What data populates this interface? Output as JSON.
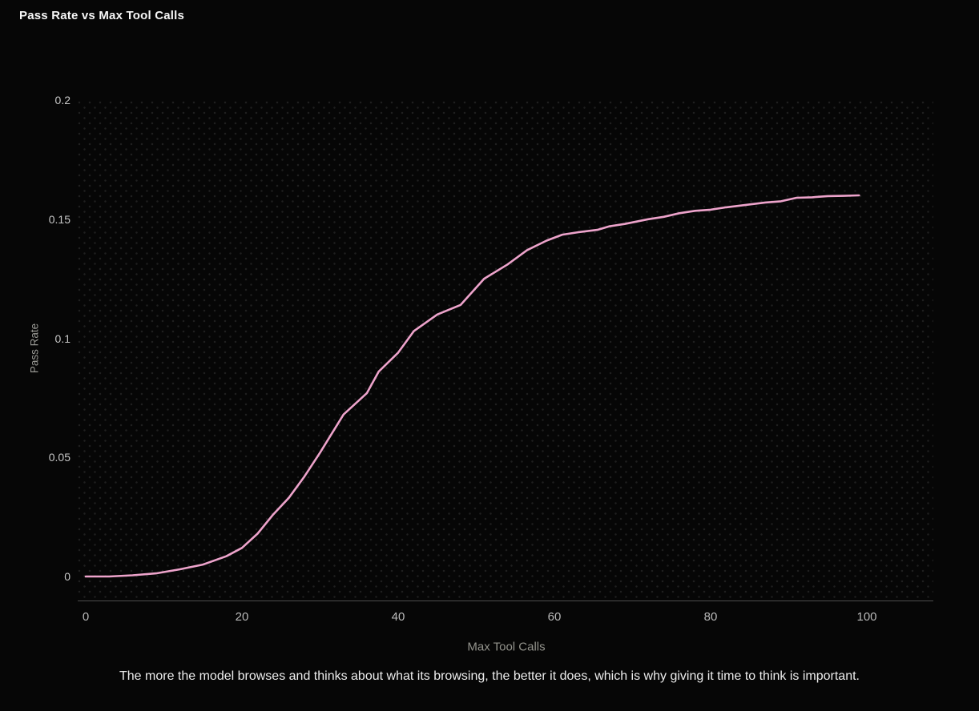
{
  "title": "Pass Rate vs Max Tool Calls",
  "caption": "The more the model browses and thinks about what its browsing, the better it does, which is why giving it time to think is important.",
  "x_axis": {
    "label": "Max Tool Calls",
    "ticks": [
      {
        "value": 0,
        "label": "0"
      },
      {
        "value": 20,
        "label": "20"
      },
      {
        "value": 40,
        "label": "40"
      },
      {
        "value": 60,
        "label": "60"
      },
      {
        "value": 80,
        "label": "80"
      },
      {
        "value": 100,
        "label": "100"
      }
    ]
  },
  "y_axis": {
    "label": "Pass Rate",
    "ticks": [
      {
        "value": 0,
        "label": "0"
      },
      {
        "value": 0.05,
        "label": "0.05"
      },
      {
        "value": 0.1,
        "label": "0.1"
      },
      {
        "value": 0.15,
        "label": "0.15"
      },
      {
        "value": 0.2,
        "label": "0.2"
      }
    ]
  },
  "colors": {
    "background": "#060606",
    "line": "#eda3cb",
    "title_text": "#f7f7f7",
    "tick_text": "#c0c0c0",
    "axis_label_text": "#93938c",
    "caption_text": "#ececec",
    "axis_line": "#4d4d4d",
    "grid_dots": "#1f1f1f"
  },
  "chart_data": {
    "type": "line",
    "title": "Pass Rate vs Max Tool Calls",
    "xlabel": "Max Tool Calls",
    "ylabel": "Pass Rate",
    "xlim": [
      0,
      100
    ],
    "ylim": [
      0,
      0.2
    ],
    "grid": "dotted background pattern, no gridlines",
    "legend": false,
    "series": [
      {
        "name": "Pass Rate",
        "color": "#eda3cb",
        "points": [
          [
            0,
            0.0
          ],
          [
            3,
            0.0
          ],
          [
            6,
            0.0005
          ],
          [
            9,
            0.0013
          ],
          [
            12,
            0.003
          ],
          [
            15,
            0.005
          ],
          [
            18,
            0.0085
          ],
          [
            20,
            0.012
          ],
          [
            22,
            0.018
          ],
          [
            24,
            0.026
          ],
          [
            26,
            0.033
          ],
          [
            28,
            0.042
          ],
          [
            30,
            0.052
          ],
          [
            33,
            0.068
          ],
          [
            36,
            0.077
          ],
          [
            37.5,
            0.086
          ],
          [
            40,
            0.094
          ],
          [
            42,
            0.103
          ],
          [
            45,
            0.11
          ],
          [
            48,
            0.114
          ],
          [
            51,
            0.125
          ],
          [
            54,
            0.131
          ],
          [
            56.5,
            0.137
          ],
          [
            59,
            0.141
          ],
          [
            61,
            0.1435
          ],
          [
            63,
            0.1445
          ],
          [
            65.5,
            0.1455
          ],
          [
            67,
            0.147
          ],
          [
            69,
            0.148
          ],
          [
            72,
            0.15
          ],
          [
            74,
            0.151
          ],
          [
            76,
            0.1525
          ],
          [
            78,
            0.1535
          ],
          [
            80,
            0.154
          ],
          [
            82,
            0.155
          ],
          [
            84.5,
            0.156
          ],
          [
            87,
            0.157
          ],
          [
            89,
            0.1575
          ],
          [
            91,
            0.159
          ],
          [
            93,
            0.1592
          ],
          [
            95,
            0.1597
          ],
          [
            97,
            0.1598
          ],
          [
            99,
            0.16
          ]
        ]
      }
    ]
  }
}
